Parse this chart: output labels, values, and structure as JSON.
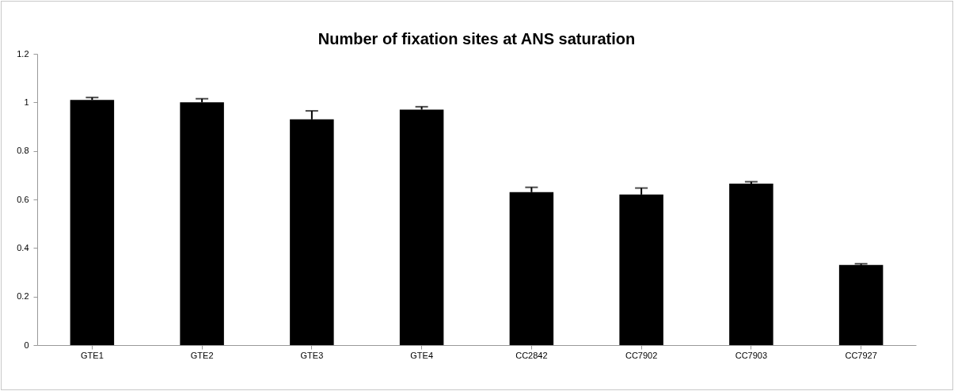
{
  "chart_data": {
    "type": "bar",
    "title": "Number of fixation sites at ANS saturation",
    "categories": [
      "GTE1",
      "GTE2",
      "GTE3",
      "GTE4",
      "CC2842",
      "CC7902",
      "CC7903",
      "CC7927"
    ],
    "values": [
      1.01,
      1.0,
      0.93,
      0.97,
      0.63,
      0.62,
      0.665,
      0.33
    ],
    "errors": [
      [
        1.01,
        1.02
      ],
      [
        1.0,
        1.015
      ],
      [
        0.93,
        0.965
      ],
      [
        0.97,
        0.982
      ],
      [
        0.63,
        0.65
      ],
      [
        0.62,
        0.647
      ],
      [
        0.665,
        0.673
      ],
      [
        0.33,
        0.335
      ]
    ],
    "color": "#000000",
    "ylim": [
      0,
      1.2
    ],
    "yticks": [
      0,
      0.2,
      0.4,
      0.6,
      0.8,
      1,
      1.2
    ],
    "grid": false
  }
}
